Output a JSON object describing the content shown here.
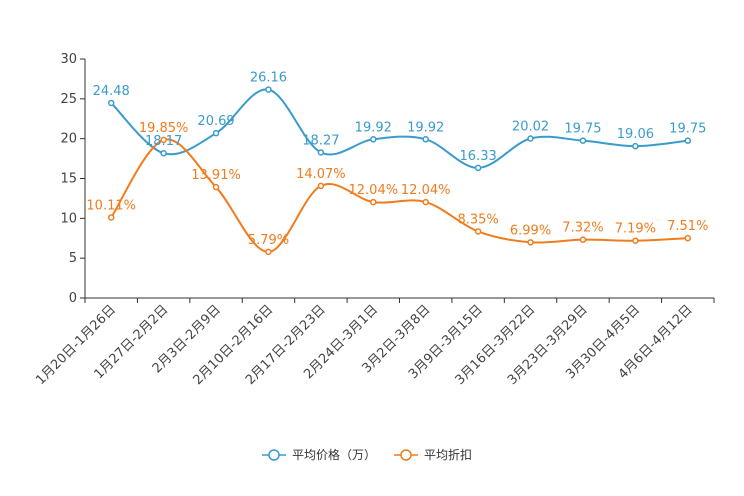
{
  "chart_data": {
    "type": "line",
    "title": "",
    "xlabel": "",
    "ylabel": "",
    "ylim": [
      0,
      30
    ],
    "yticks": [
      0,
      5,
      10,
      15,
      20,
      25,
      30
    ],
    "ytick_labels": [
      "0",
      "5",
      "10",
      "15",
      "20",
      "25",
      "30"
    ],
    "categories": [
      "1月20日-1月26日",
      "1月27日-2月2日",
      "2月3日-2月9日",
      "2月10日-2月16日",
      "2月17日-2月23日",
      "2月24日-3月1日",
      "3月2日-3月8日",
      "3月9日-3月15日",
      "3月16日-3月22日",
      "3月23日-3月29日",
      "3月30日-4月5日",
      "4月6日-4月12日"
    ],
    "series": [
      {
        "name": "平均价格（万）",
        "color": "#3a9bcc",
        "values": [
          24.48,
          18.17,
          20.69,
          26.16,
          18.27,
          19.92,
          19.92,
          16.33,
          20.02,
          19.75,
          19.06,
          19.75
        ],
        "labels": [
          "24.48",
          "18.17",
          "20.69",
          "26.16",
          "18.27",
          "19.92",
          "19.92",
          "16.33",
          "20.02",
          "19.75",
          "19.06",
          "19.75"
        ]
      },
      {
        "name": "平均折扣",
        "color": "#f07c1e",
        "values": [
          10.11,
          19.85,
          13.91,
          5.79,
          14.07,
          12.04,
          12.04,
          8.35,
          6.99,
          7.32,
          7.19,
          7.51
        ],
        "labels": [
          "10.11%",
          "19.85%",
          "13.91%",
          "5.79%",
          "14.07%",
          "12.04%",
          "12.04%",
          "8.35%",
          "6.99%",
          "7.32%",
          "7.19%",
          "7.51%"
        ]
      }
    ],
    "legend_position": "bottom-center"
  }
}
